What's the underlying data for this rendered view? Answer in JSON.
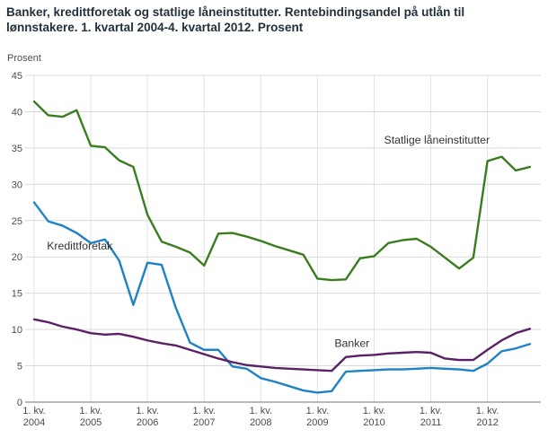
{
  "chart_data": {
    "type": "line",
    "title": "Banker, kredittforetak og statlige låneinstitutter. Rentebindingsandel på utlån til lønnstakere. 1. kvartal 2004-4. kvartal 2012. Prosent",
    "ylabel": "Prosent",
    "xlabel": "",
    "ylim": [
      0,
      45
    ],
    "yticks": [
      0,
      5,
      10,
      15,
      20,
      25,
      30,
      35,
      40,
      45
    ],
    "grid": true,
    "legend_position": "inline-annotations",
    "x_frequency": "quarterly",
    "x_start": "1. kvartal 2004",
    "x_end": "4. kvartal 2012",
    "x_tick_prefix": "1. kv.",
    "x_tick_years": [
      "2004",
      "2005",
      "2006",
      "2007",
      "2008",
      "2009",
      "2010",
      "2011",
      "2012"
    ],
    "series": [
      {
        "name": "Statlige låneinstitutter",
        "color": "#3a7d1e",
        "values": [
          41.4,
          39.5,
          39.3,
          40.2,
          35.3,
          35.1,
          33.3,
          32.4,
          25.8,
          22.1,
          21.4,
          20.6,
          18.8,
          23.2,
          23.3,
          22.8,
          22.2,
          21.5,
          20.9,
          20.3,
          17.0,
          16.8,
          16.9,
          19.8,
          20.1,
          21.9,
          22.3,
          22.5,
          21.4,
          19.9,
          18.4,
          19.9,
          33.2,
          33.8,
          31.9,
          32.4
        ]
      },
      {
        "name": "Kredittforetak",
        "color": "#1e82c4",
        "values": [
          27.5,
          24.9,
          24.3,
          23.3,
          21.9,
          22.4,
          19.5,
          13.4,
          19.2,
          18.9,
          13.0,
          8.2,
          7.2,
          7.2,
          4.9,
          4.6,
          3.3,
          2.8,
          2.2,
          1.6,
          1.3,
          1.5,
          4.2,
          4.3,
          4.4,
          4.5,
          4.5,
          4.6,
          4.7,
          4.6,
          4.5,
          4.3,
          5.3,
          7.0,
          7.4,
          8.0
        ]
      },
      {
        "name": "Banker",
        "color": "#5a2164",
        "values": [
          11.4,
          11.0,
          10.4,
          10.0,
          9.5,
          9.3,
          9.4,
          9.0,
          8.5,
          8.1,
          7.8,
          7.2,
          6.6,
          6.0,
          5.5,
          5.1,
          4.9,
          4.7,
          4.6,
          4.5,
          4.4,
          4.3,
          6.2,
          6.4,
          6.5,
          6.7,
          6.8,
          6.9,
          6.8,
          6.0,
          5.8,
          5.8,
          7.2,
          8.5,
          9.5,
          10.1
        ]
      }
    ],
    "annotations": [
      {
        "text": "Statlige låneinstitutter",
        "x_index": 24.7,
        "y_value": 35.6
      },
      {
        "text": "Kredittforetak",
        "x_index": 0.9,
        "y_value": 21.0
      },
      {
        "text": "Banker",
        "x_index": 21.2,
        "y_value": 7.6
      }
    ]
  },
  "colors": {
    "title_text": "#22303c",
    "tick_text": "#4b4b4b",
    "annotation_text": "#333333",
    "grid_horizontal": "#d9d9d9",
    "grid_vertical": "#e2e2e2",
    "axis": "#8f8f8f",
    "background": "#ffffff"
  }
}
